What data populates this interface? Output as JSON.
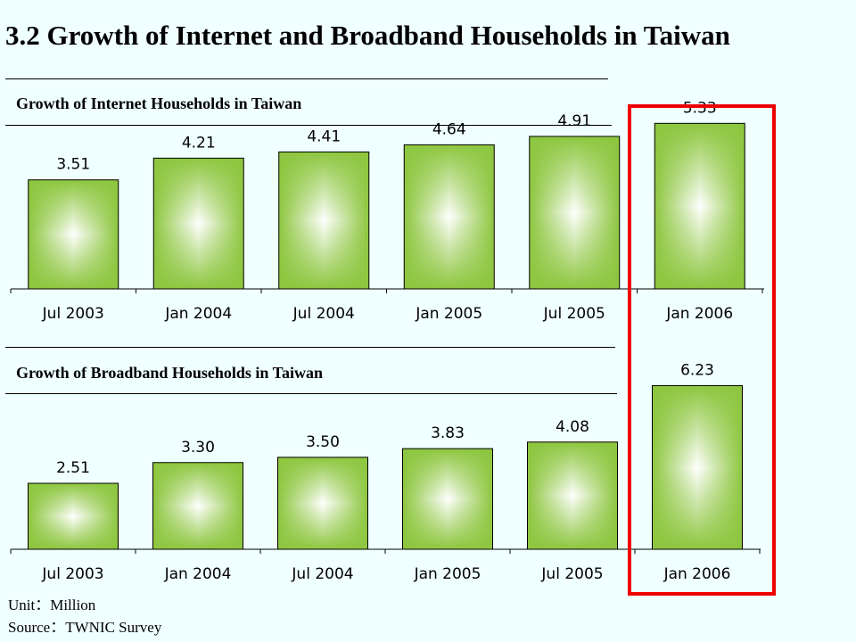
{
  "title": "3.2 Growth of Internet and Broadband Households in Taiwan",
  "colors": {
    "bar_edge": "#8DC63F",
    "bar_center": "#FFFFFF",
    "highlight": "#EE0000",
    "background": "#F0FFFF"
  },
  "footnotes": {
    "unit": "Unit：Million",
    "source": "Source：TWNIC Survey"
  },
  "chart_data": [
    {
      "type": "bar",
      "title": "Growth of Internet Households in Taiwan",
      "categories": [
        "Jul 2003",
        "Jan 2004",
        "Jul 2004",
        "Jan 2005",
        "Jul 2005",
        "Jan 2006"
      ],
      "values": [
        3.51,
        4.21,
        4.41,
        4.64,
        4.91,
        5.33
      ],
      "value_labels": [
        "3.51",
        "4.21",
        "4.41",
        "4.64",
        "4.91",
        "5.33"
      ],
      "ylim": [
        0,
        6
      ],
      "grid": false,
      "highlight_category": "Jan 2006"
    },
    {
      "type": "bar",
      "title": "Growth of Broadband Households in Taiwan",
      "categories": [
        "Jul 2003",
        "Jan 2004",
        "Jul 2004",
        "Jan 2005",
        "Jul 2005",
        "Jan 2006"
      ],
      "values": [
        2.51,
        3.3,
        3.5,
        3.83,
        4.08,
        6.23
      ],
      "value_labels": [
        "2.51",
        "3.30",
        "3.50",
        "3.83",
        "4.08",
        "6.23"
      ],
      "ylim": [
        0,
        7.5
      ],
      "grid": false,
      "highlight_category": "Jan 2006"
    }
  ]
}
